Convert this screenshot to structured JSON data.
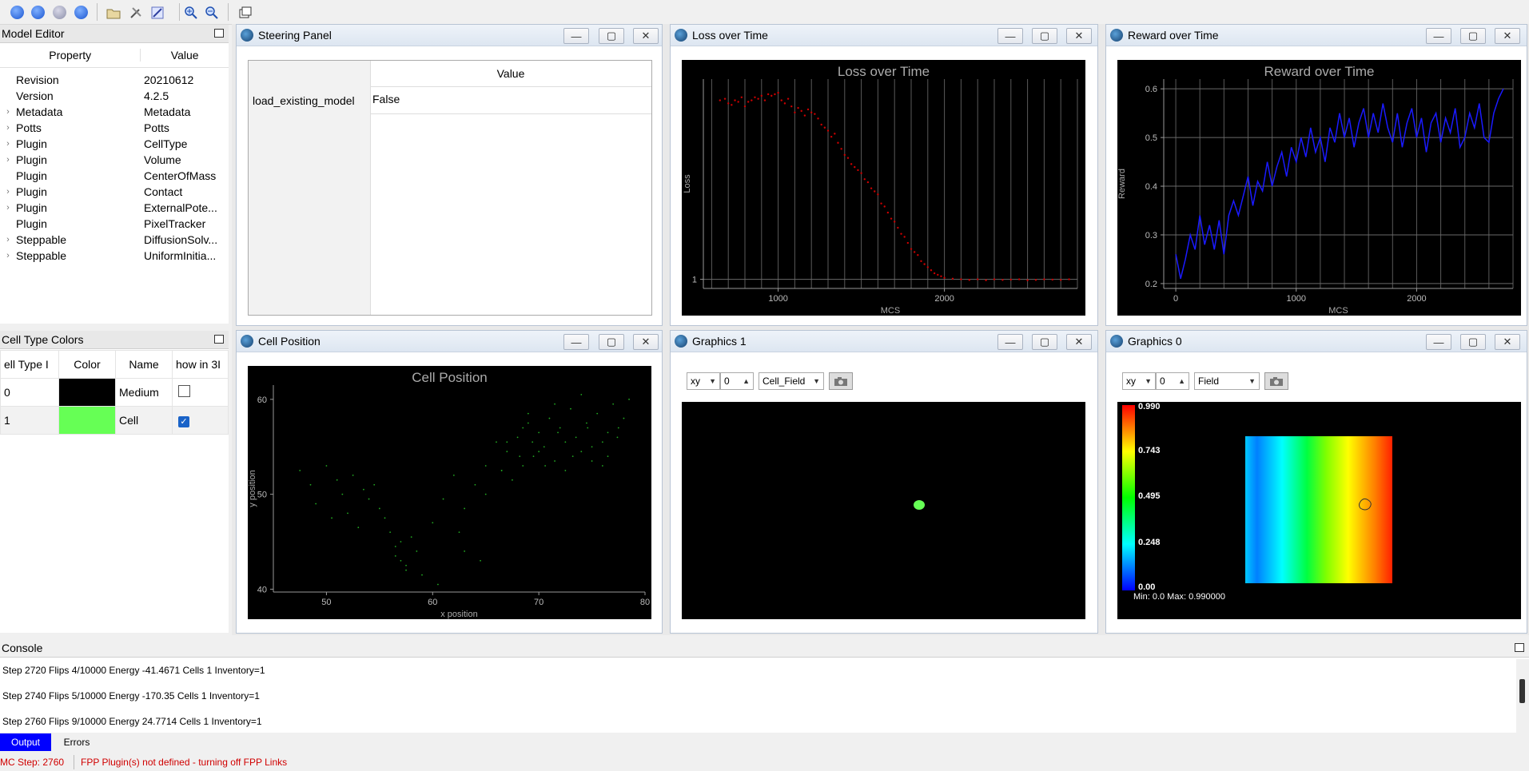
{
  "model_editor": {
    "title": "Model Editor",
    "col_property": "Property",
    "col_value": "Value",
    "rows": [
      {
        "arrow": "",
        "property": "Revision",
        "value": "20210612"
      },
      {
        "arrow": "",
        "property": "Version",
        "value": "4.2.5"
      },
      {
        "arrow": "›",
        "property": "Metadata",
        "value": "Metadata"
      },
      {
        "arrow": "›",
        "property": "Potts",
        "value": "Potts"
      },
      {
        "arrow": "›",
        "property": "Plugin",
        "value": "CellType"
      },
      {
        "arrow": "›",
        "property": "Plugin",
        "value": "Volume"
      },
      {
        "arrow": "",
        "property": "Plugin",
        "value": "CenterOfMass"
      },
      {
        "arrow": "›",
        "property": "Plugin",
        "value": "Contact"
      },
      {
        "arrow": "›",
        "property": "Plugin",
        "value": "ExternalPote..."
      },
      {
        "arrow": "",
        "property": "Plugin",
        "value": "PixelTracker"
      },
      {
        "arrow": "›",
        "property": "Steppable",
        "value": "DiffusionSolv..."
      },
      {
        "arrow": "›",
        "property": "Steppable",
        "value": "UniformInitia..."
      }
    ]
  },
  "cell_type_colors": {
    "title": "Cell Type Colors",
    "headers": [
      "ell Type I",
      "Color",
      "Name",
      "how in 3I"
    ],
    "rows": [
      {
        "id": "0",
        "color": "#000000",
        "name": "Medium",
        "checked": false
      },
      {
        "id": "1",
        "color": "#66ff55",
        "name": "Cell",
        "checked": true
      }
    ]
  },
  "windows": {
    "steering": {
      "title": "Steering Panel",
      "col_value": "Value",
      "param": "load_existing_model",
      "param_value": "False"
    },
    "loss": {
      "title": "Loss over Time"
    },
    "reward": {
      "title": "Reward over Time"
    },
    "cell_pos": {
      "title": "Cell Position"
    },
    "graphics1": {
      "title": "Graphics 1",
      "plane": "xy",
      "slice": "0",
      "field": "Cell_Field"
    },
    "graphics0": {
      "title": "Graphics 0",
      "plane": "xy",
      "slice": "0",
      "field": "Field",
      "colorbar_labels": [
        "0.990",
        "0.743",
        "0.495",
        "0.248",
        "0.00"
      ],
      "minmax": "Min: 0.0 Max: 0.990000"
    }
  },
  "console": {
    "title": "Console",
    "lines": [
      "Step 2720 Flips 4/10000 Energy -41.4671 Cells 1 Inventory=1",
      "Step 2740 Flips 5/10000 Energy -170.35 Cells 1 Inventory=1",
      "Step 2760 Flips 9/10000 Energy 24.7714 Cells 1 Inventory=1"
    ],
    "tab_output": "Output",
    "tab_errors": "Errors"
  },
  "status": {
    "mc_step": "MC Step: 2760",
    "message": "FPP Plugin(s) not defined - turning off FPP Links"
  },
  "colors": {
    "accent": "#0000ff",
    "loss_series": "#cc0000",
    "reward_series": "#1a1aff",
    "cell_points": "#22aa22"
  },
  "chart_data": [
    {
      "type": "scatter",
      "title": "Loss over Time",
      "xlabel": "MCS",
      "ylabel": "Loss",
      "xlim": [
        550,
        2800
      ],
      "x_ticks": [
        1000,
        2000
      ],
      "y_ticks": [
        1
      ],
      "series": [
        {
          "x": [
            650,
            680,
            700,
            720,
            740,
            760,
            780,
            800,
            820,
            840,
            860,
            880,
            900,
            920,
            940,
            960,
            980,
            1000,
            1020,
            1040,
            1060,
            1080,
            1100,
            1120,
            1140,
            1160,
            1180,
            1200,
            1220,
            1240,
            1260,
            1280,
            1300,
            1320,
            1340,
            1360,
            1380,
            1400,
            1420,
            1440,
            1460,
            1480,
            1500,
            1520,
            1540,
            1560,
            1580,
            1600,
            1620,
            1640,
            1660,
            1680,
            1700,
            1720,
            1740,
            1760,
            1780,
            1800,
            1820,
            1840,
            1860,
            1880,
            1900,
            1920,
            1940,
            1960,
            1980,
            2000,
            2050,
            2100,
            2150,
            2200,
            2250,
            2300,
            2350,
            2400,
            2450,
            2500,
            2550,
            2600,
            2650,
            2700,
            2750
          ],
          "y": [
            6.9,
            6.95,
            6.8,
            6.75,
            6.9,
            6.85,
            7.0,
            6.7,
            6.85,
            6.9,
            7.0,
            6.95,
            7.05,
            6.9,
            7.1,
            7.05,
            7.1,
            7.15,
            6.9,
            6.8,
            6.95,
            6.7,
            6.5,
            6.65,
            6.55,
            6.4,
            6.6,
            6.5,
            6.45,
            6.3,
            6.1,
            6.0,
            5.9,
            5.7,
            5.8,
            5.5,
            5.3,
            5.1,
            5.0,
            4.8,
            4.7,
            4.6,
            4.5,
            4.3,
            4.2,
            4.0,
            3.9,
            3.8,
            3.5,
            3.4,
            3.2,
            3.0,
            2.9,
            2.7,
            2.5,
            2.4,
            2.2,
            2.0,
            1.9,
            1.8,
            1.6,
            1.5,
            1.4,
            1.3,
            1.2,
            1.15,
            1.1,
            1.05,
            1.02,
            1.0,
            0.98,
            1.0,
            0.97,
            1.0,
            0.98,
            0.99,
            1.0,
            0.97,
            0.98,
            1.0,
            0.99,
            0.98,
            1.0
          ]
        }
      ]
    },
    {
      "type": "line",
      "title": "Reward over Time",
      "xlabel": "MCS",
      "ylabel": "Reward",
      "xlim": [
        -100,
        2800
      ],
      "ylim": [
        0.19,
        0.62
      ],
      "x_ticks": [
        0,
        1000,
        2000
      ],
      "y_ticks": [
        0.2,
        0.3,
        0.4,
        0.5,
        0.6
      ],
      "series": [
        {
          "x": [
            0,
            40,
            80,
            120,
            160,
            200,
            240,
            280,
            320,
            360,
            400,
            440,
            480,
            520,
            560,
            600,
            640,
            680,
            720,
            760,
            800,
            840,
            880,
            920,
            960,
            1000,
            1040,
            1080,
            1120,
            1160,
            1200,
            1240,
            1280,
            1320,
            1360,
            1400,
            1440,
            1480,
            1520,
            1560,
            1600,
            1640,
            1680,
            1720,
            1760,
            1800,
            1840,
            1880,
            1920,
            1960,
            2000,
            2040,
            2080,
            2120,
            2160,
            2200,
            2240,
            2280,
            2320,
            2360,
            2400,
            2440,
            2480,
            2520,
            2560,
            2600,
            2640,
            2680,
            2720
          ],
          "y": [
            0.26,
            0.21,
            0.25,
            0.3,
            0.27,
            0.34,
            0.28,
            0.32,
            0.27,
            0.33,
            0.26,
            0.34,
            0.37,
            0.34,
            0.38,
            0.42,
            0.36,
            0.41,
            0.39,
            0.45,
            0.4,
            0.44,
            0.47,
            0.42,
            0.48,
            0.45,
            0.5,
            0.46,
            0.52,
            0.47,
            0.5,
            0.45,
            0.52,
            0.49,
            0.55,
            0.5,
            0.54,
            0.48,
            0.53,
            0.56,
            0.5,
            0.55,
            0.51,
            0.57,
            0.52,
            0.49,
            0.55,
            0.48,
            0.53,
            0.56,
            0.5,
            0.54,
            0.47,
            0.53,
            0.55,
            0.49,
            0.54,
            0.51,
            0.56,
            0.48,
            0.5,
            0.55,
            0.52,
            0.57,
            0.5,
            0.49,
            0.55,
            0.58,
            0.6
          ]
        }
      ]
    },
    {
      "type": "scatter",
      "title": "Cell Position",
      "xlabel": "x position",
      "ylabel": "y position",
      "xlim": [
        45,
        80
      ],
      "ylim": [
        39.7,
        61.5
      ],
      "x_ticks": [
        50,
        60,
        70,
        80
      ],
      "y_ticks": [
        40,
        50,
        60
      ],
      "series": [
        {
          "x": [
            47.5,
            48.5,
            49.0,
            50.0,
            50.5,
            51.0,
            51.5,
            52.0,
            52.5,
            53.0,
            53.5,
            54.0,
            54.5,
            55.0,
            55.5,
            56.0,
            56.5,
            57.0,
            57.5,
            58.0,
            58.5,
            59.0,
            60.0,
            61.0,
            62.0,
            63.0,
            64.0,
            64.5,
            65.0,
            66.0,
            66.5,
            67.0,
            67.5,
            68.0,
            68.5,
            69.0,
            69.5,
            70.0,
            70.5,
            71.0,
            71.5,
            72.0,
            72.5,
            73.0,
            73.5,
            74.0,
            74.5,
            75.0,
            75.5,
            76.0,
            76.5,
            77.0,
            77.5,
            78.0,
            68.2,
            69.4,
            70.6,
            71.8,
            73.2,
            74.6,
            76.0,
            77.4,
            67.0,
            70.0,
            72.5,
            75.0,
            57.0,
            56.5,
            57.5,
            60.5,
            62.5,
            65.0,
            63.0,
            66.5,
            68.5,
            71.5,
            74.0,
            76.5,
            78.5,
            69.0
          ],
          "y": [
            52.5,
            51.0,
            49.0,
            53.0,
            47.5,
            51.5,
            50.0,
            48.0,
            52.0,
            46.5,
            50.5,
            49.5,
            51.0,
            48.5,
            47.5,
            46.0,
            44.5,
            43.0,
            42.5,
            45.5,
            44.0,
            41.5,
            47.0,
            49.5,
            52.0,
            48.5,
            51.0,
            43.0,
            53.0,
            55.5,
            52.5,
            54.5,
            51.5,
            56.0,
            53.0,
            57.5,
            54.0,
            56.5,
            55.0,
            58.0,
            53.5,
            57.0,
            55.5,
            59.0,
            56.0,
            54.5,
            57.5,
            55.0,
            58.5,
            53.0,
            56.5,
            59.5,
            57.0,
            58.0,
            54.0,
            55.5,
            53.0,
            56.5,
            54.0,
            57.0,
            55.5,
            56.0,
            55.5,
            54.5,
            52.5,
            53.5,
            45.0,
            43.5,
            42.0,
            40.5,
            46.0,
            50.0,
            44.0,
            52.5,
            57.0,
            59.5,
            60.5,
            54.0,
            60.0,
            58.5
          ]
        }
      ]
    }
  ]
}
